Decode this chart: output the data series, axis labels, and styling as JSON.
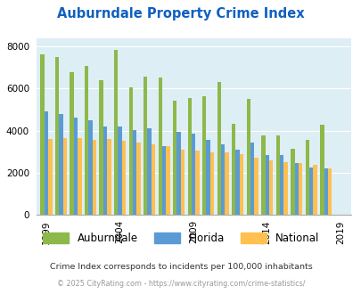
{
  "title": "Auburndale Property Crime Index",
  "years": [
    1999,
    2000,
    2001,
    2002,
    2003,
    2004,
    2005,
    2006,
    2007,
    2008,
    2009,
    2010,
    2011,
    2012,
    2013,
    2014,
    2015,
    2016,
    2017,
    2018,
    2019
  ],
  "auburndale": [
    7620,
    7520,
    6800,
    7080,
    6390,
    7840,
    6060,
    6580,
    6530,
    5410,
    5540,
    5620,
    6310,
    4340,
    5520,
    3780,
    3770,
    3120,
    3580,
    4260,
    0
  ],
  "florida": [
    4920,
    4800,
    4640,
    4490,
    4180,
    4180,
    4040,
    4120,
    3250,
    3920,
    3870,
    3580,
    3330,
    3090,
    3420,
    2840,
    2820,
    2460,
    2240,
    2200,
    0
  ],
  "national": [
    3620,
    3650,
    3660,
    3570,
    3600,
    3520,
    3440,
    3340,
    3270,
    3100,
    3050,
    2960,
    2950,
    2860,
    2730,
    2600,
    2490,
    2450,
    2360,
    2200,
    0
  ],
  "colors": {
    "auburndale": "#8db84a",
    "florida": "#5b9bd5",
    "national": "#ffc050",
    "plot_bg": "#deeef5"
  },
  "ylim": [
    0,
    8400
  ],
  "yticks": [
    0,
    2000,
    4000,
    6000,
    8000
  ],
  "xlabel_years": [
    1999,
    2004,
    2009,
    2014,
    2019
  ],
  "subtitle": "Crime Index corresponds to incidents per 100,000 inhabitants",
  "footer": "© 2025 CityRating.com - https://www.cityrating.com/crime-statistics/",
  "title_color": "#1060c0",
  "subtitle_color": "#333333",
  "footer_color": "#999999",
  "legend_labels": [
    "Auburndale",
    "Florida",
    "National"
  ]
}
